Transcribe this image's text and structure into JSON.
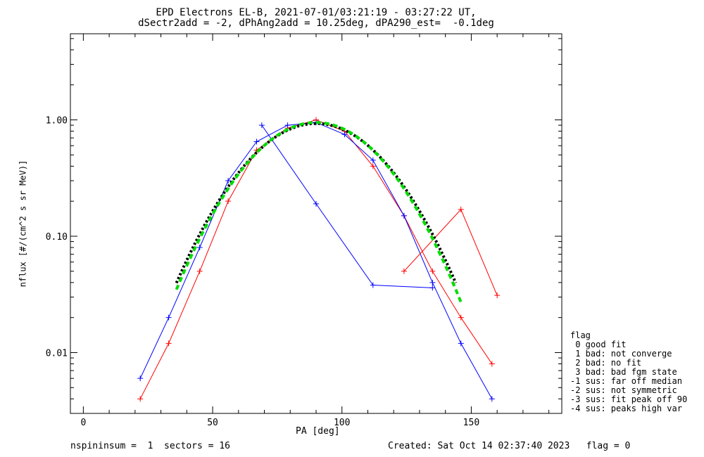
{
  "chart_data": {
    "type": "line",
    "title_line1": "EPD Electrons EL-B, 2021-07-01/03:21:19 - 03:27:22 UT,",
    "title_line2": "dSectr2add = -2, dPhAng2add = 10.25deg, dPA290_est=  -0.1deg",
    "xlabel": "PA [deg]",
    "ylabel": "nflux [#/(cm^2 s sr MeV)]",
    "xlim": [
      -5,
      185
    ],
    "ylim": [
      0.003,
      5.5
    ],
    "yscale": "log",
    "xticks": [
      0,
      50,
      100,
      150
    ],
    "xtick_labels": [
      "0",
      "50",
      "100",
      "150"
    ],
    "yticks": [
      0.01,
      0.1,
      1.0
    ],
    "ytick_labels": [
      "0.01",
      "0.10",
      "1.00"
    ],
    "grid": false,
    "series": [
      {
        "color": "#ff0000",
        "values": [
          {
            "x": 22,
            "y": 0.004
          },
          {
            "x": 33,
            "y": 0.012
          },
          {
            "x": 45,
            "y": 0.05
          },
          {
            "x": 56,
            "y": 0.2
          },
          {
            "x": 67,
            "y": 0.55
          },
          {
            "x": 79,
            "y": 0.85
          },
          {
            "x": 90,
            "y": 1.0
          },
          {
            "x": 101,
            "y": 0.8
          },
          {
            "x": 112,
            "y": 0.4
          },
          {
            "x": 124,
            "y": 0.15
          },
          {
            "x": 135,
            "y": 0.05
          },
          {
            "x": 146,
            "y": 0.02
          },
          {
            "x": 158,
            "y": 0.008
          }
        ]
      },
      {
        "color": "#0000ff",
        "values": [
          {
            "x": 22,
            "y": 0.006
          },
          {
            "x": 33,
            "y": 0.02
          },
          {
            "x": 45,
            "y": 0.08
          },
          {
            "x": 56,
            "y": 0.3
          },
          {
            "x": 67,
            "y": 0.65
          },
          {
            "x": 79,
            "y": 0.9
          },
          {
            "x": 90,
            "y": 0.95
          },
          {
            "x": 101,
            "y": 0.75
          },
          {
            "x": 112,
            "y": 0.45
          },
          {
            "x": 124,
            "y": 0.15
          },
          {
            "x": 135,
            "y": 0.04
          },
          {
            "x": 146,
            "y": 0.012
          },
          {
            "x": 158,
            "y": 0.004
          }
        ]
      },
      {
        "color": "#0000ff",
        "values": [
          {
            "x": 69,
            "y": 0.9
          },
          {
            "x": 90,
            "y": 0.19
          },
          {
            "x": 112,
            "y": 0.038
          },
          {
            "x": 135,
            "y": 0.036
          }
        ]
      },
      {
        "color": "#ff0000",
        "values": [
          {
            "x": 124,
            "y": 0.05
          },
          {
            "x": 146,
            "y": 0.17
          },
          {
            "x": 160,
            "y": 0.031
          }
        ]
      }
    ],
    "fits": [
      {
        "color": "#000000",
        "style": "dotted",
        "center": 90,
        "peak": 0.93,
        "sigma": 21.5,
        "xrange": [
          36,
          144
        ]
      },
      {
        "color": "#00dd00",
        "style": "dashed",
        "center": 90,
        "peak": 0.95,
        "sigma": 21.0,
        "xrange": [
          36,
          146
        ]
      }
    ],
    "legend": {
      "placement": "right",
      "title": "flag",
      "entries": [
        " 0 good fit",
        " 1 bad: not converge",
        " 2 bad: no fit",
        " 3 bad: bad fgm state",
        "-1 sus: far off median",
        "-2 sus: not symmetric",
        "-3 sus: fit peak off 90",
        "-4 sus: peaks high var"
      ]
    }
  },
  "footer": {
    "left": "nspininsum =  1  sectors = 16",
    "right": "Created: Sat Oct 14 02:37:40 2023   flag = 0"
  }
}
